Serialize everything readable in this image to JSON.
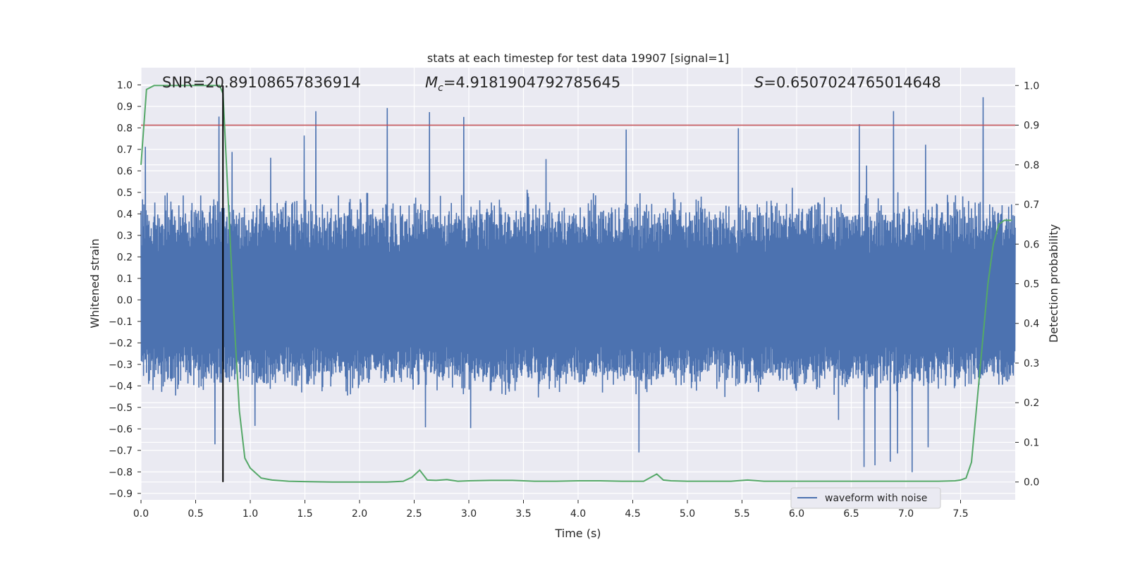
{
  "chart_data": {
    "type": "line",
    "title": "stats at each timestep for test data 19907 [signal=1]",
    "xlabel": "Time (s)",
    "ylabel": "Whitened strain",
    "y2label": "Detection probability",
    "xlim": [
      0.0,
      8.0
    ],
    "ylim": [
      -0.93,
      1.08
    ],
    "y2lim": [
      -0.045,
      1.045
    ],
    "xticks": [
      "0.0",
      "0.5",
      "1.0",
      "1.5",
      "2.0",
      "2.5",
      "3.0",
      "3.5",
      "4.0",
      "4.5",
      "5.0",
      "5.5",
      "6.0",
      "6.5",
      "7.0",
      "7.5"
    ],
    "xtick_values": [
      0.0,
      0.5,
      1.0,
      1.5,
      2.0,
      2.5,
      3.0,
      3.5,
      4.0,
      4.5,
      5.0,
      5.5,
      6.0,
      6.5,
      7.0,
      7.5
    ],
    "yticks": [
      "−0.9",
      "−0.8",
      "−0.7",
      "−0.6",
      "−0.5",
      "−0.4",
      "−0.3",
      "−0.2",
      "−0.1",
      "0.0",
      "0.1",
      "0.2",
      "0.3",
      "0.4",
      "0.5",
      "0.6",
      "0.7",
      "0.8",
      "0.9",
      "1.0"
    ],
    "ytick_values": [
      -0.9,
      -0.8,
      -0.7,
      -0.6,
      -0.5,
      -0.4,
      -0.3,
      -0.2,
      -0.1,
      0.0,
      0.1,
      0.2,
      0.3,
      0.4,
      0.5,
      0.6,
      0.7,
      0.8,
      0.9,
      1.0
    ],
    "y2ticks": [
      "0.0",
      "0.1",
      "0.2",
      "0.3",
      "0.4",
      "0.5",
      "0.6",
      "0.7",
      "0.8",
      "0.9",
      "1.0"
    ],
    "y2tick_values": [
      0.0,
      0.1,
      0.2,
      0.3,
      0.4,
      0.5,
      0.6,
      0.7,
      0.8,
      0.9,
      1.0
    ],
    "annotations": {
      "snr": "SNR=20.89108657836914",
      "mc_symbol": "M",
      "mc_sub": "c",
      "mc_value": "=4.9181904792785645",
      "s_symbol": "S",
      "s_value": "=0.6507024765014648"
    },
    "legend": {
      "label": "waveform with noise",
      "placement": "lower-right"
    },
    "threshold_line": {
      "y2": 0.9,
      "color": "#c44e52"
    },
    "event_marker": {
      "x": 0.75,
      "color": "#000000"
    },
    "series": [
      {
        "name": "waveform with noise",
        "color": "#4c72b0",
        "style": "dense-noise",
        "x_range": [
          0.0,
          8.0
        ],
        "typical_envelope": [
          -0.4,
          0.45
        ],
        "peak_max": 1.0,
        "peak_min": -0.83
      },
      {
        "color": "#55a868",
        "axis": "right",
        "x": [
          0.0,
          0.05,
          0.12,
          0.2,
          0.3,
          0.45,
          0.6,
          0.67,
          0.72,
          0.75,
          0.8,
          0.85,
          0.9,
          0.95,
          1.0,
          1.1,
          1.2,
          1.35,
          1.5,
          1.75,
          2.0,
          2.25,
          2.4,
          2.48,
          2.55,
          2.62,
          2.7,
          2.8,
          2.9,
          3.0,
          3.2,
          3.4,
          3.6,
          3.8,
          4.0,
          4.2,
          4.4,
          4.6,
          4.72,
          4.78,
          4.85,
          5.0,
          5.2,
          5.4,
          5.55,
          5.7,
          5.9,
          6.1,
          6.3,
          6.5,
          6.7,
          6.9,
          7.1,
          7.3,
          7.45,
          7.5,
          7.55,
          7.6,
          7.65,
          7.7,
          7.75,
          7.8,
          7.85,
          7.9,
          7.97
        ],
        "y": [
          0.8,
          0.99,
          1.0,
          1.0,
          1.0,
          1.0,
          1.0,
          1.0,
          1.0,
          0.98,
          0.7,
          0.42,
          0.18,
          0.06,
          0.035,
          0.01,
          0.005,
          0.002,
          0.001,
          0.0,
          0.0,
          0.0,
          0.002,
          0.012,
          0.03,
          0.005,
          0.004,
          0.006,
          0.002,
          0.003,
          0.004,
          0.004,
          0.002,
          0.002,
          0.003,
          0.003,
          0.002,
          0.002,
          0.02,
          0.005,
          0.003,
          0.002,
          0.002,
          0.002,
          0.005,
          0.002,
          0.002,
          0.002,
          0.002,
          0.002,
          0.002,
          0.002,
          0.002,
          0.002,
          0.003,
          0.005,
          0.01,
          0.05,
          0.2,
          0.35,
          0.5,
          0.6,
          0.65,
          0.66,
          0.66
        ]
      }
    ]
  }
}
